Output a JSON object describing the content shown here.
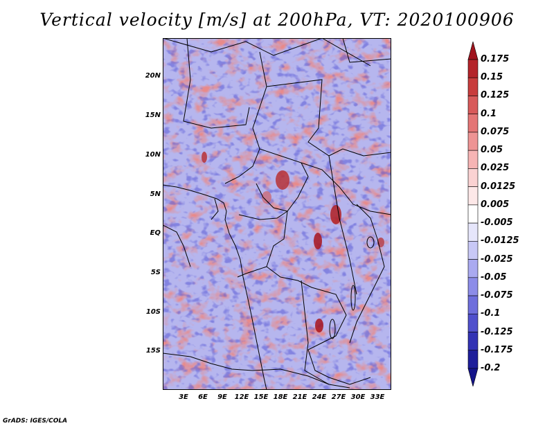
{
  "title": "Vertical velocity [m/s] at 200hPa, VT: 2020100906",
  "credit": "GrADS: IGES/COLA",
  "map": {
    "lat_ticks": [
      "20N",
      "15N",
      "10N",
      "5N",
      "EQ",
      "5S",
      "10S",
      "15S"
    ],
    "lon_ticks": [
      "3E",
      "6E",
      "9E",
      "12E",
      "15E",
      "18E",
      "21E",
      "24E",
      "27E",
      "30E",
      "33E"
    ]
  },
  "colorbar": {
    "labels": [
      "0.175",
      "0.15",
      "0.125",
      "0.1",
      "0.075",
      "0.05",
      "0.025",
      "0.0125",
      "0.005",
      "-0.005",
      "-0.0125",
      "-0.025",
      "-0.05",
      "-0.075",
      "-0.1",
      "-0.125",
      "-0.175",
      "-0.2"
    ],
    "colors": [
      "#a0141e",
      "#b4242a",
      "#c83c3c",
      "#d85a5a",
      "#e47676",
      "#ee9494",
      "#f6b4b4",
      "#fad2d2",
      "#fde8e8",
      "#ffffff",
      "#e6e6fb",
      "#c8c8f6",
      "#aaaaf0",
      "#8c8ce8",
      "#6e6edc",
      "#5050cc",
      "#3232b4",
      "#1e1e9a",
      "#14148a"
    ]
  }
}
